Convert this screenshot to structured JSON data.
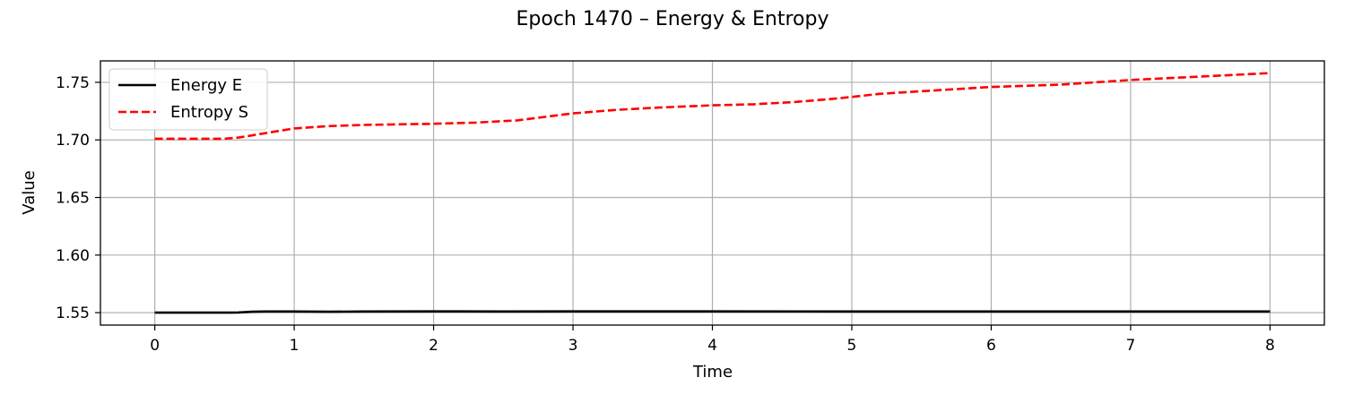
{
  "chart_data": {
    "type": "line",
    "title": "Epoch 1470 – Energy & Entropy",
    "xlabel": "Time",
    "ylabel": "Value",
    "xlim": [
      -0.39,
      8.39
    ],
    "ylim": [
      1.5392,
      1.7686
    ],
    "xticks": [
      0,
      1,
      2,
      3,
      4,
      5,
      6,
      7,
      8
    ],
    "yticks": [
      1.55,
      1.6,
      1.65,
      1.7,
      1.75
    ],
    "xtick_labels": [
      "0",
      "1",
      "2",
      "3",
      "4",
      "5",
      "6",
      "7",
      "8"
    ],
    "ytick_labels": [
      "1.55",
      "1.60",
      "1.65",
      "1.70",
      "1.75"
    ],
    "grid": true,
    "legend": "upper-left",
    "series": [
      {
        "name": "Energy E",
        "color": "#000000",
        "style": "solid",
        "x": [
          0,
          0.25,
          0.5,
          0.6,
          0.7,
          0.8,
          1.0,
          1.25,
          1.5,
          2.0,
          2.5,
          3.0,
          4.0,
          5.0,
          6.0,
          7.0,
          8.0
        ],
        "y": [
          1.55,
          1.55,
          1.55,
          1.5502,
          1.5508,
          1.551,
          1.551,
          1.5508,
          1.551,
          1.5511,
          1.551,
          1.5511,
          1.5511,
          1.551,
          1.551,
          1.551,
          1.551
        ]
      },
      {
        "name": "Entropy S",
        "color": "#ff0000",
        "style": "dashed",
        "x": [
          0,
          0.25,
          0.5,
          0.6,
          0.7,
          0.85,
          1.0,
          1.25,
          1.5,
          2.0,
          2.3,
          2.6,
          2.8,
          3.0,
          3.3,
          3.6,
          4.0,
          4.3,
          4.6,
          4.9,
          5.2,
          5.6,
          6.0,
          6.5,
          7.0,
          7.5,
          8.0
        ],
        "y": [
          1.701,
          1.701,
          1.701,
          1.702,
          1.704,
          1.707,
          1.71,
          1.712,
          1.713,
          1.714,
          1.715,
          1.717,
          1.72,
          1.723,
          1.726,
          1.728,
          1.73,
          1.731,
          1.733,
          1.736,
          1.74,
          1.743,
          1.746,
          1.748,
          1.752,
          1.755,
          1.758
        ]
      }
    ]
  }
}
